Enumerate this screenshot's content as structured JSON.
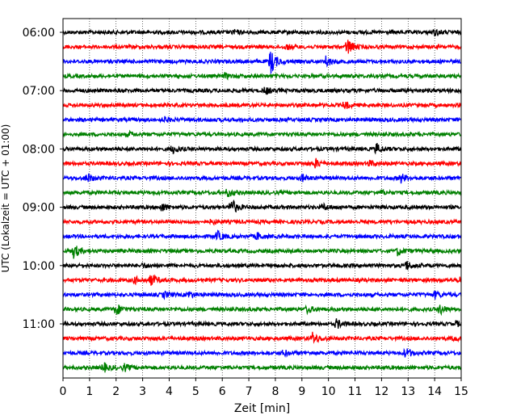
{
  "chart_data": {
    "type": "line",
    "title": "",
    "xlabel": "Zeit  [min]",
    "ylabel": "UTC (Lokalzeit = UTC + 01:00)",
    "xlim": [
      0,
      15
    ],
    "x_ticks": [
      "0",
      "1",
      "2",
      "3",
      "4",
      "5",
      "6",
      "7",
      "8",
      "9",
      "10",
      "11",
      "12",
      "13",
      "14",
      "15"
    ],
    "y_ticks": [
      "06:00",
      "07:00",
      "08:00",
      "09:00",
      "10:00",
      "11:00"
    ],
    "grid": "vertical dotted",
    "color_cycle": [
      "#000000",
      "#ff0000",
      "#0000ff",
      "#008000"
    ],
    "series": [
      {
        "start": "06:00",
        "color": "#000000",
        "events": [
          {
            "x": 6.4,
            "amp": 0.4
          },
          {
            "x": 14.0,
            "amp": 0.5
          }
        ]
      },
      {
        "start": "06:15",
        "color": "#ff0000",
        "events": [
          {
            "x": 10.7,
            "amp": 1.6
          },
          {
            "x": 8.4,
            "amp": 0.4
          }
        ]
      },
      {
        "start": "06:30",
        "color": "#0000ff",
        "events": [
          {
            "x": 7.8,
            "amp": 2.4
          },
          {
            "x": 9.9,
            "amp": 0.9
          }
        ]
      },
      {
        "start": "06:45",
        "color": "#008000",
        "events": [
          {
            "x": 6.1,
            "amp": 0.4
          }
        ]
      },
      {
        "start": "07:00",
        "color": "#000000",
        "events": [
          {
            "x": 7.6,
            "amp": 0.7
          }
        ]
      },
      {
        "start": "07:15",
        "color": "#ff0000",
        "events": [
          {
            "x": 10.6,
            "amp": 0.6
          }
        ]
      },
      {
        "start": "07:30",
        "color": "#0000ff",
        "events": [
          {
            "x": 3.8,
            "amp": 0.4
          }
        ]
      },
      {
        "start": "07:45",
        "color": "#008000",
        "events": [
          {
            "x": 2.5,
            "amp": 0.3
          }
        ]
      },
      {
        "start": "08:00",
        "color": "#000000",
        "events": [
          {
            "x": 4.1,
            "amp": 0.8
          },
          {
            "x": 11.8,
            "amp": 0.9
          }
        ]
      },
      {
        "start": "08:15",
        "color": "#ff0000",
        "events": [
          {
            "x": 9.5,
            "amp": 0.8
          },
          {
            "x": 11.5,
            "amp": 0.5
          }
        ]
      },
      {
        "start": "08:30",
        "color": "#0000ff",
        "events": [
          {
            "x": 0.9,
            "amp": 0.8
          },
          {
            "x": 12.7,
            "amp": 0.9
          },
          {
            "x": 9.0,
            "amp": 0.6
          }
        ]
      },
      {
        "start": "08:45",
        "color": "#008000",
        "events": [
          {
            "x": 6.2,
            "amp": 0.7
          },
          {
            "x": 12.0,
            "amp": 0.3
          }
        ]
      },
      {
        "start": "09:00",
        "color": "#000000",
        "events": [
          {
            "x": 6.3,
            "amp": 1.8
          },
          {
            "x": 3.7,
            "amp": 0.8
          },
          {
            "x": 9.8,
            "amp": 0.5
          }
        ]
      },
      {
        "start": "09:15",
        "color": "#ff0000",
        "events": [
          {
            "x": 5.6,
            "amp": 0.4
          }
        ]
      },
      {
        "start": "09:30",
        "color": "#0000ff",
        "events": [
          {
            "x": 5.8,
            "amp": 0.9
          },
          {
            "x": 7.3,
            "amp": 0.6
          }
        ]
      },
      {
        "start": "09:45",
        "color": "#008000",
        "events": [
          {
            "x": 0.4,
            "amp": 1.2
          },
          {
            "x": 12.6,
            "amp": 0.7
          }
        ]
      },
      {
        "start": "10:00",
        "color": "#000000",
        "events": [
          {
            "x": 12.9,
            "amp": 0.9
          },
          {
            "x": 3.0,
            "amp": 0.4
          }
        ]
      },
      {
        "start": "10:15",
        "color": "#ff0000",
        "events": [
          {
            "x": 3.3,
            "amp": 1.1
          },
          {
            "x": 14.9,
            "amp": 0.6
          },
          {
            "x": 2.7,
            "amp": 0.5
          }
        ]
      },
      {
        "start": "10:30",
        "color": "#0000ff",
        "events": [
          {
            "x": 3.8,
            "amp": 0.5
          },
          {
            "x": 4.7,
            "amp": 0.6
          },
          {
            "x": 14.0,
            "amp": 0.6
          }
        ]
      },
      {
        "start": "10:45",
        "color": "#008000",
        "events": [
          {
            "x": 2.0,
            "amp": 1.0
          },
          {
            "x": 14.2,
            "amp": 0.8
          },
          {
            "x": 9.2,
            "amp": 0.6
          }
        ]
      },
      {
        "start": "11:00",
        "color": "#000000",
        "events": [
          {
            "x": 10.3,
            "amp": 0.8
          },
          {
            "x": 14.8,
            "amp": 0.4
          }
        ]
      },
      {
        "start": "11:15",
        "color": "#ff0000",
        "events": [
          {
            "x": 9.4,
            "amp": 1.0
          },
          {
            "x": 14.7,
            "amp": 0.4
          }
        ]
      },
      {
        "start": "11:30",
        "color": "#0000ff",
        "events": [
          {
            "x": 12.9,
            "amp": 0.9
          },
          {
            "x": 8.3,
            "amp": 0.5
          }
        ]
      },
      {
        "start": "11:45",
        "color": "#008000",
        "events": [
          {
            "x": 1.5,
            "amp": 0.9
          },
          {
            "x": 2.3,
            "amp": 0.6
          }
        ]
      }
    ]
  }
}
